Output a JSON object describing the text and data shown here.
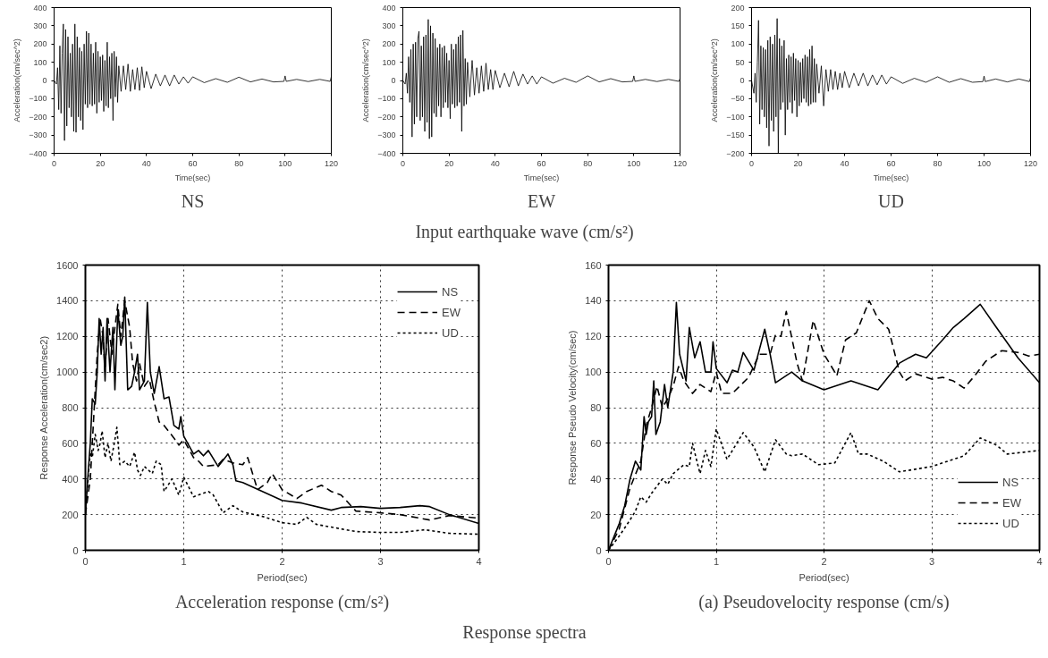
{
  "chart_data": [
    {
      "type": "line",
      "subtitle": "NS",
      "xlabel": "Time(sec)",
      "ylabel": "Acceleration(cm/sec^2)",
      "xlim": [
        0,
        120
      ],
      "ylim": [
        -400,
        400
      ],
      "xticks": [
        0,
        20,
        40,
        60,
        80,
        100,
        120
      ],
      "yticks": [
        -400,
        -300,
        -200,
        -100,
        0,
        100,
        200,
        300,
        400
      ],
      "grid": false,
      "legend": false,
      "x": [
        0,
        1,
        1.5,
        2,
        2.5,
        3,
        3.5,
        4,
        4.5,
        5,
        5.5,
        6,
        6.5,
        7,
        7.5,
        8,
        8.5,
        9,
        9.5,
        10,
        10.5,
        11,
        11.5,
        12,
        12.5,
        13,
        13.5,
        14,
        14.5,
        15,
        15.5,
        16,
        16.5,
        17,
        17.5,
        18,
        18.5,
        19,
        19.5,
        20,
        20.5,
        21,
        21.5,
        22,
        22.5,
        23,
        23.5,
        24,
        24.5,
        25,
        25.5,
        26,
        26.5,
        27,
        27.5,
        28,
        29,
        30,
        31,
        32,
        33,
        34,
        35,
        36,
        37,
        38,
        39,
        40,
        42,
        44,
        46,
        48,
        50,
        52,
        54,
        56,
        58,
        60,
        65,
        70,
        75,
        80,
        85,
        90,
        95,
        99.5,
        100,
        100.5,
        105,
        110,
        115,
        119.5,
        120
      ],
      "series": [
        {
          "color": "#000000",
          "line_style": "solid",
          "values": [
            0,
            -20,
            70,
            -160,
            190,
            -180,
            150,
            310,
            -330,
            280,
            -250,
            240,
            -150,
            150,
            -200,
            200,
            -280,
            310,
            -285,
            240,
            -200,
            180,
            -220,
            160,
            -270,
            200,
            -130,
            270,
            -150,
            260,
            -130,
            200,
            -140,
            150,
            -130,
            210,
            -180,
            160,
            -120,
            130,
            -110,
            140,
            -170,
            110,
            -140,
            210,
            -150,
            130,
            -100,
            150,
            -220,
            160,
            -90,
            130,
            -120,
            80,
            -60,
            80,
            -50,
            90,
            -60,
            60,
            -50,
            70,
            -55,
            75,
            -40,
            50,
            -45,
            35,
            -30,
            30,
            -30,
            30,
            -20,
            20,
            -15,
            20,
            -12,
            10,
            -10,
            18,
            -8,
            8,
            -8,
            -5,
            25,
            -5,
            6,
            -6,
            6,
            -5,
            20
          ]
        }
      ]
    },
    {
      "type": "line",
      "subtitle": "EW",
      "xlabel": "Time(sec)",
      "ylabel": "Acceleration(cm/sec^2)",
      "xlim": [
        0,
        120
      ],
      "ylim": [
        -400,
        400
      ],
      "xticks": [
        0,
        20,
        40,
        60,
        80,
        100,
        120
      ],
      "yticks": [
        -400,
        -300,
        -200,
        -100,
        0,
        100,
        200,
        300,
        400
      ],
      "grid": false,
      "legend": false,
      "annotations": [
        "Input earthquake wave (cm/s²)"
      ],
      "x": [
        0,
        1,
        1.5,
        2,
        2.5,
        3,
        3.5,
        4,
        4.5,
        5,
        5.5,
        6,
        6.5,
        7,
        7.5,
        8,
        8.5,
        9,
        9.5,
        10,
        10.5,
        11,
        11.5,
        12,
        12.5,
        13,
        13.5,
        14,
        14.5,
        15,
        15.5,
        16,
        16.5,
        17,
        17.5,
        18,
        18.5,
        19,
        19.5,
        20,
        20.5,
        21,
        21.5,
        22,
        22.5,
        23,
        23.5,
        24,
        24.5,
        25,
        25.5,
        26,
        26.5,
        27,
        27.5,
        28,
        29,
        30,
        31,
        32,
        33,
        34,
        35,
        36,
        37,
        38,
        39,
        40,
        42,
        44,
        46,
        48,
        50,
        52,
        54,
        56,
        58,
        60,
        65,
        70,
        75,
        80,
        85,
        90,
        95,
        99.5,
        100,
        100.5,
        105,
        110,
        115,
        119.5,
        120
      ],
      "series": [
        {
          "color": "#000000",
          "line_style": "solid",
          "values": [
            0,
            -20,
            40,
            -70,
            130,
            -120,
            170,
            -310,
            200,
            -240,
            210,
            -200,
            230,
            270,
            -220,
            190,
            -200,
            240,
            -280,
            250,
            -230,
            335,
            -320,
            300,
            -310,
            260,
            -180,
            230,
            -200,
            180,
            -140,
            200,
            -200,
            180,
            -150,
            190,
            -120,
            150,
            -150,
            110,
            -210,
            200,
            -130,
            170,
            -150,
            200,
            -140,
            240,
            -120,
            250,
            -280,
            275,
            -140,
            120,
            -130,
            100,
            -90,
            110,
            -80,
            70,
            -70,
            80,
            -60,
            95,
            -50,
            60,
            -50,
            55,
            -40,
            40,
            -35,
            50,
            -30,
            35,
            -20,
            25,
            -20,
            20,
            -15,
            12,
            -10,
            25,
            -8,
            10,
            -8,
            -5,
            25,
            -5,
            6,
            -6,
            6,
            -5,
            10
          ]
        }
      ]
    },
    {
      "type": "line",
      "subtitle": "UD",
      "xlabel": "Time(sec)",
      "ylabel": "Acceleration(cm/sec^2)",
      "xlim": [
        0,
        120
      ],
      "ylim": [
        -200,
        200
      ],
      "xticks": [
        0,
        20,
        40,
        60,
        80,
        100,
        120
      ],
      "yticks": [
        -200,
        -150,
        -100,
        -50,
        0,
        50,
        100,
        150,
        200
      ],
      "grid": false,
      "legend": false,
      "x": [
        0,
        1,
        1.5,
        2,
        2.5,
        3,
        3.5,
        4,
        4.5,
        5,
        5.5,
        6,
        6.5,
        7,
        7.5,
        8,
        8.5,
        9,
        9.5,
        10,
        10.5,
        11,
        11.5,
        12,
        12.5,
        13,
        13.5,
        14,
        14.5,
        15,
        15.5,
        16,
        16.5,
        17,
        17.5,
        18,
        18.5,
        19,
        19.5,
        20,
        20.5,
        21,
        21.5,
        22,
        22.5,
        23,
        23.5,
        24,
        24.5,
        25,
        25.5,
        26,
        26.5,
        27,
        27.5,
        28,
        29,
        30,
        31,
        32,
        33,
        34,
        35,
        36,
        37,
        38,
        39,
        40,
        42,
        44,
        46,
        48,
        50,
        52,
        54,
        56,
        58,
        60,
        65,
        70,
        75,
        80,
        85,
        90,
        95,
        99.5,
        100,
        100.5,
        105,
        110,
        115,
        119.5,
        120
      ],
      "series": [
        {
          "color": "#000000",
          "line_style": "solid",
          "values": [
            0,
            -35,
            20,
            -60,
            50,
            165,
            -120,
            95,
            -80,
            90,
            -100,
            85,
            -130,
            110,
            -180,
            120,
            -110,
            100,
            -140,
            125,
            -100,
            170,
            -200,
            115,
            -80,
            95,
            -60,
            110,
            -150,
            60,
            -80,
            70,
            -60,
            65,
            -90,
            75,
            -55,
            60,
            -100,
            55,
            -70,
            50,
            -60,
            60,
            -50,
            70,
            -60,
            65,
            -70,
            85,
            -65,
            95,
            -60,
            60,
            -60,
            45,
            -35,
            40,
            -70,
            30,
            -30,
            30,
            -25,
            25,
            -25,
            20,
            -20,
            25,
            -20,
            20,
            -15,
            20,
            -15,
            15,
            -12,
            15,
            -10,
            10,
            -8,
            6,
            -5,
            10,
            -5,
            5,
            -5,
            -3,
            12,
            -3,
            4,
            -4,
            4,
            -3,
            8
          ]
        }
      ]
    },
    {
      "type": "line",
      "subtitle": "Acceleration response (cm/s²)",
      "xlabel": "Period(sec)",
      "ylabel": "Response Acceleration(cm/sec2)",
      "xlim": [
        0,
        4
      ],
      "ylim": [
        0,
        1600
      ],
      "xticks": [
        0,
        1,
        2,
        3,
        4
      ],
      "yticks": [
        0,
        200,
        400,
        600,
        800,
        1000,
        1200,
        1400,
        1600
      ],
      "grid": true,
      "legend": "top right",
      "series": [
        {
          "name": "NS",
          "color": "#000000",
          "line_style": "solid",
          "x": [
            0,
            0.03,
            0.05,
            0.07,
            0.1,
            0.12,
            0.14,
            0.16,
            0.18,
            0.2,
            0.22,
            0.25,
            0.28,
            0.3,
            0.33,
            0.36,
            0.38,
            0.4,
            0.43,
            0.47,
            0.5,
            0.53,
            0.55,
            0.6,
            0.63,
            0.66,
            0.7,
            0.75,
            0.8,
            0.85,
            0.9,
            0.95,
            0.97,
            1.0,
            1.1,
            1.15,
            1.2,
            1.25,
            1.35,
            1.45,
            1.5,
            1.53,
            1.6,
            1.8,
            2.0,
            2.2,
            2.5,
            2.6,
            2.8,
            3.0,
            3.2,
            3.4,
            3.5,
            3.7,
            4.0
          ],
          "values": [
            200,
            450,
            600,
            850,
            820,
            1000,
            1300,
            1100,
            1250,
            950,
            1300,
            1000,
            1250,
            900,
            1350,
            1150,
            1200,
            1420,
            900,
            920,
            1000,
            1100,
            900,
            950,
            1390,
            1000,
            880,
            1030,
            850,
            860,
            700,
            680,
            750,
            640,
            540,
            560,
            530,
            560,
            470,
            540,
            480,
            390,
            380,
            330,
            280,
            265,
            225,
            240,
            245,
            235,
            240,
            250,
            245,
            200,
            150
          ]
        },
        {
          "name": "EW",
          "color": "#000000",
          "line_style": "dashed",
          "x": [
            0,
            0.05,
            0.08,
            0.12,
            0.15,
            0.18,
            0.2,
            0.23,
            0.27,
            0.3,
            0.33,
            0.36,
            0.4,
            0.45,
            0.48,
            0.52,
            0.55,
            0.6,
            0.65,
            0.7,
            0.75,
            0.8,
            0.9,
            0.95,
            1.0,
            1.1,
            1.15,
            1.2,
            1.35,
            1.4,
            1.5,
            1.6,
            1.65,
            1.75,
            1.85,
            1.9,
            2.0,
            2.15,
            2.25,
            2.4,
            2.5,
            2.6,
            2.75,
            3.0,
            3.2,
            3.5,
            3.7,
            4.0
          ],
          "values": [
            200,
            400,
            700,
            1100,
            1300,
            1200,
            1000,
            1300,
            1100,
            1250,
            1380,
            1200,
            1400,
            1250,
            1050,
            950,
            1050,
            920,
            960,
            830,
            720,
            700,
            630,
            590,
            620,
            520,
            500,
            470,
            480,
            510,
            490,
            480,
            520,
            340,
            380,
            430,
            340,
            290,
            330,
            365,
            330,
            310,
            220,
            210,
            200,
            170,
            195,
            180
          ]
        },
        {
          "name": "UD",
          "color": "#000000",
          "line_style": "dotted",
          "x": [
            0,
            0.03,
            0.05,
            0.07,
            0.1,
            0.13,
            0.15,
            0.17,
            0.2,
            0.23,
            0.26,
            0.3,
            0.32,
            0.35,
            0.4,
            0.45,
            0.5,
            0.53,
            0.56,
            0.6,
            0.68,
            0.72,
            0.77,
            0.8,
            0.88,
            0.95,
            1.0,
            1.1,
            1.25,
            1.3,
            1.4,
            1.5,
            1.6,
            1.8,
            2.0,
            2.15,
            2.25,
            2.35,
            2.5,
            2.75,
            3.0,
            3.2,
            3.45,
            3.7,
            4.0
          ],
          "values": [
            200,
            420,
            550,
            520,
            650,
            560,
            600,
            670,
            520,
            600,
            500,
            620,
            690,
            480,
            500,
            470,
            550,
            450,
            420,
            470,
            430,
            500,
            480,
            330,
            400,
            310,
            410,
            300,
            330,
            310,
            210,
            250,
            215,
            190,
            155,
            145,
            185,
            145,
            130,
            105,
            100,
            100,
            115,
            95,
            90
          ]
        }
      ]
    },
    {
      "type": "line",
      "subtitle": "(a) Pseudovelocity response (cm/s)",
      "xlabel": "Period(sec)",
      "ylabel": "Response Pseudo Velocity(cm/sec)",
      "xlim": [
        0,
        4
      ],
      "ylim": [
        0,
        160
      ],
      "xticks": [
        0,
        1,
        2,
        3,
        4
      ],
      "yticks": [
        0,
        20,
        40,
        60,
        80,
        100,
        120,
        140,
        160
      ],
      "grid": true,
      "legend": "bottom right",
      "annotations": [
        "Response spectra"
      ],
      "series": [
        {
          "name": "NS",
          "color": "#000000",
          "line_style": "solid",
          "x": [
            0,
            0.1,
            0.15,
            0.2,
            0.25,
            0.3,
            0.33,
            0.35,
            0.37,
            0.4,
            0.42,
            0.44,
            0.48,
            0.52,
            0.55,
            0.6,
            0.63,
            0.66,
            0.7,
            0.72,
            0.75,
            0.8,
            0.85,
            0.9,
            0.95,
            0.97,
            1.0,
            1.1,
            1.15,
            1.2,
            1.25,
            1.35,
            1.45,
            1.5,
            1.55,
            1.7,
            1.8,
            2.0,
            2.25,
            2.5,
            2.7,
            2.85,
            2.95,
            3.1,
            3.2,
            3.3,
            3.45,
            3.6,
            3.8,
            4.0
          ],
          "values": [
            0,
            15,
            25,
            40,
            50,
            45,
            75,
            65,
            72,
            75,
            95,
            65,
            72,
            93,
            80,
            100,
            139,
            110,
            100,
            95,
            125,
            108,
            117,
            100,
            100,
            117,
            102,
            94,
            101,
            100,
            111,
            101,
            124,
            110,
            94,
            100,
            95,
            90,
            95,
            90,
            105,
            110,
            108,
            118,
            125,
            130,
            138,
            125,
            108,
            94
          ]
        },
        {
          "name": "EW",
          "color": "#000000",
          "line_style": "dashed",
          "x": [
            0,
            0.1,
            0.2,
            0.3,
            0.35,
            0.4,
            0.45,
            0.5,
            0.55,
            0.6,
            0.65,
            0.7,
            0.78,
            0.85,
            0.95,
            1.0,
            1.05,
            1.15,
            1.3,
            1.4,
            1.5,
            1.55,
            1.6,
            1.65,
            1.75,
            1.8,
            1.9,
            2.0,
            2.12,
            2.2,
            2.3,
            2.42,
            2.5,
            2.6,
            2.7,
            2.75,
            2.85,
            3.0,
            3.1,
            3.2,
            3.3,
            3.4,
            3.5,
            3.65,
            3.8,
            3.9,
            4.0
          ],
          "values": [
            0,
            12,
            35,
            50,
            70,
            80,
            92,
            80,
            85,
            92,
            103,
            95,
            88,
            93,
            89,
            100,
            88,
            88,
            97,
            110,
            110,
            121,
            120,
            134,
            105,
            95,
            129,
            110,
            98,
            118,
            122,
            140,
            130,
            124,
            100,
            95,
            99,
            96,
            97,
            95,
            91,
            98,
            106,
            112,
            111,
            109,
            110
          ]
        },
        {
          "name": "UD",
          "color": "#000000",
          "line_style": "dotted",
          "x": [
            0,
            0.1,
            0.2,
            0.25,
            0.3,
            0.35,
            0.4,
            0.5,
            0.55,
            0.6,
            0.7,
            0.75,
            0.78,
            0.82,
            0.85,
            0.9,
            0.95,
            1.0,
            1.1,
            1.25,
            1.35,
            1.45,
            1.55,
            1.65,
            1.7,
            1.8,
            1.95,
            2.1,
            2.25,
            2.32,
            2.4,
            2.55,
            2.7,
            3.0,
            3.3,
            3.45,
            3.6,
            3.7,
            3.85,
            4.0
          ],
          "values": [
            0,
            8,
            17,
            22,
            30,
            27,
            32,
            40,
            37,
            43,
            48,
            47,
            60,
            50,
            43,
            56,
            47,
            68,
            51,
            66,
            58,
            44,
            62,
            54,
            53,
            54,
            48,
            49,
            66,
            54,
            54,
            50,
            44,
            47,
            53,
            63,
            59,
            54,
            55,
            56
          ]
        }
      ]
    }
  ]
}
